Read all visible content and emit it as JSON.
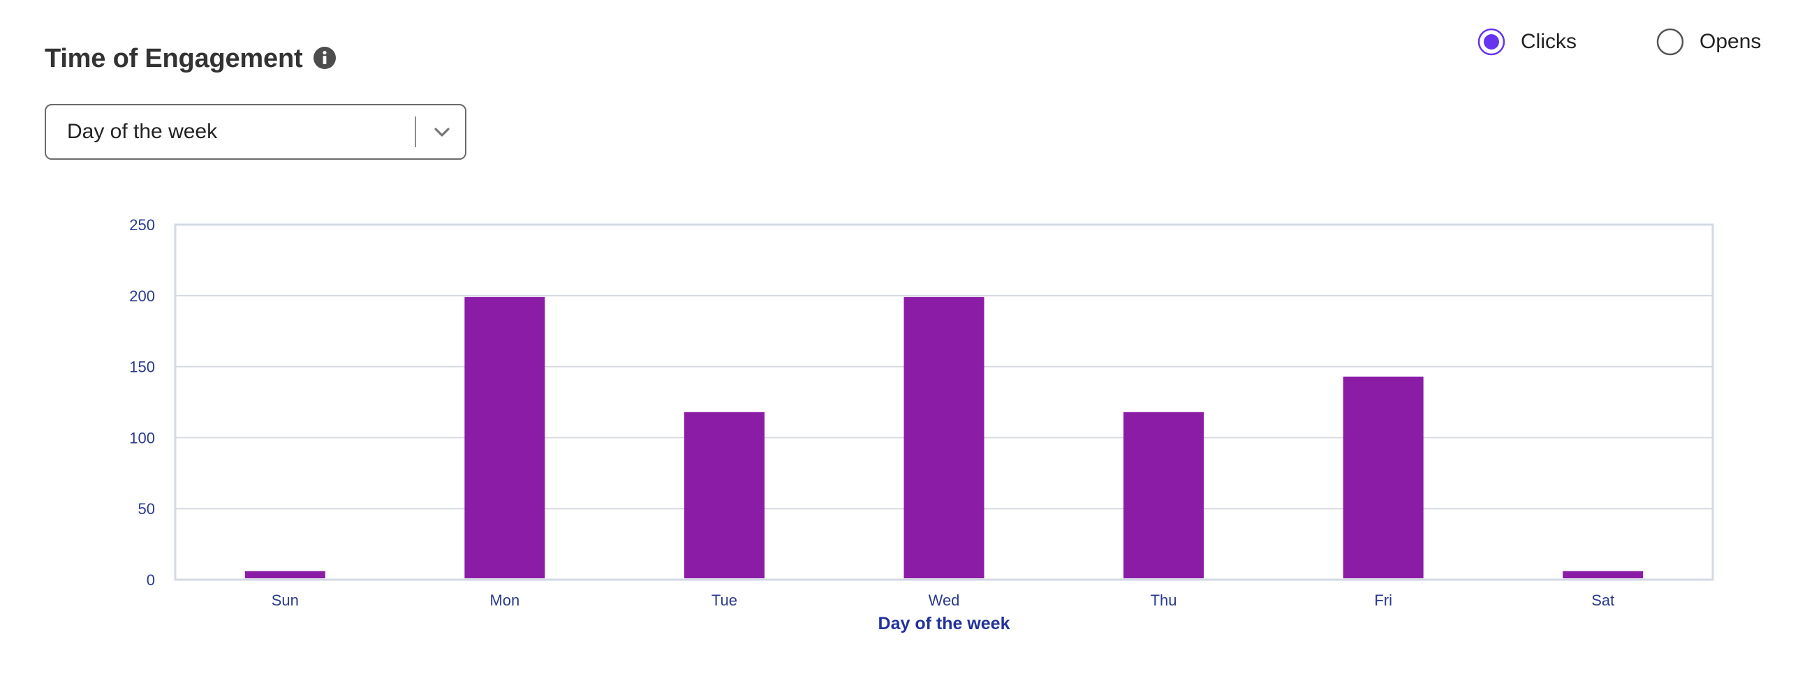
{
  "header": {
    "title": "Time of Engagement",
    "info_icon": "info-icon"
  },
  "select": {
    "value": "Day of the week",
    "icon": "chevron-down-icon"
  },
  "metric_toggle": {
    "options": [
      {
        "label": "Clicks",
        "selected": true
      },
      {
        "label": "Opens",
        "selected": false
      }
    ],
    "accent_color": "#6633ee"
  },
  "colors": {
    "bar": "#8b1ca6",
    "axis_text": "#2b3a8c",
    "grid": "#d6d9e0",
    "frame": "#d3d8e4"
  },
  "chart_data": {
    "type": "bar",
    "title": "",
    "xlabel": "Day of the week",
    "ylabel": "",
    "categories": [
      "Sun",
      "Mon",
      "Tue",
      "Wed",
      "Thu",
      "Fri",
      "Sat"
    ],
    "series": [
      {
        "values": [
          6,
          199,
          118,
          199,
          118,
          143,
          6
        ]
      }
    ],
    "ylim": [
      0,
      250
    ],
    "yticks": [
      0,
      50,
      100,
      150,
      200,
      250
    ],
    "grid": true,
    "legend": "none"
  }
}
